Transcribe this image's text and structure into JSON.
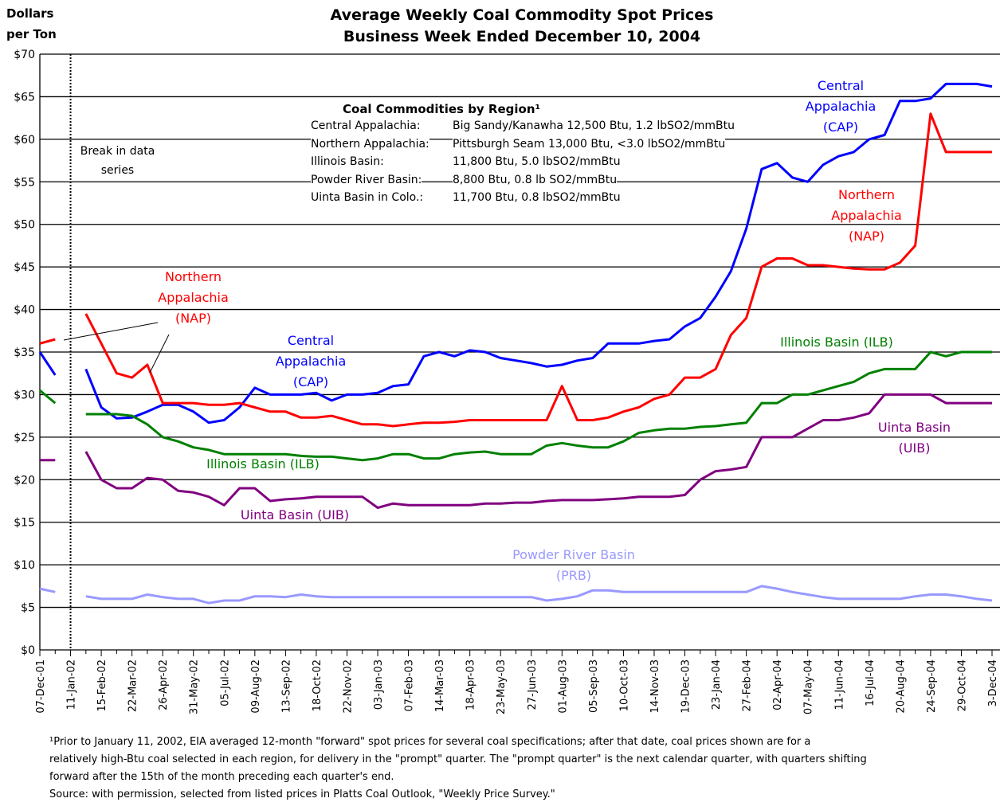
{
  "chart_data": {
    "type": "line",
    "title": [
      "Average Weekly Coal Commodity Spot Prices",
      "Business Week Ended December 10, 2004"
    ],
    "y_label": [
      "Dollars",
      "per Ton"
    ],
    "ylim": [
      0,
      70
    ],
    "yticks": [
      {
        "value": 0,
        "label": "$0"
      },
      {
        "value": 5,
        "label": "$5"
      },
      {
        "value": 10,
        "label": "$10"
      },
      {
        "value": 15,
        "label": "$15"
      },
      {
        "value": 20,
        "label": "$20"
      },
      {
        "value": 25,
        "label": "$25"
      },
      {
        "value": 30,
        "label": "$30"
      },
      {
        "value": 35,
        "label": "$35"
      },
      {
        "value": 40,
        "label": "$40"
      },
      {
        "value": 45,
        "label": "$45"
      },
      {
        "value": 50,
        "label": "$50"
      },
      {
        "value": 55,
        "label": "$55"
      },
      {
        "value": 60,
        "label": "$60"
      },
      {
        "value": 65,
        "label": "$65"
      },
      {
        "value": 70,
        "label": "$70"
      }
    ],
    "grid": true,
    "categories": [
      "07-Dec-01",
      null,
      "11-Jan-02",
      null,
      "15-Feb-02",
      null,
      "22-Mar-02",
      null,
      "26-Apr-02",
      null,
      "31-May-02",
      null,
      "05-Jul-02",
      null,
      "09-Aug-02",
      null,
      "13-Sep-02",
      null,
      "18-Oct-02",
      null,
      "22-Nov-02",
      null,
      "03-Jan-03",
      null,
      "07-Feb-03",
      null,
      "14-Mar-03",
      null,
      "18-Apr-03",
      null,
      "23-May-03",
      null,
      "27-Jun-03",
      null,
      "01-Aug-03",
      null,
      "05-Sep-03",
      null,
      "10-Oct-03",
      null,
      "14-Nov-03",
      null,
      "19-Dec-03",
      null,
      "23-Jan-04",
      null,
      "27-Feb-04",
      null,
      "02-Apr-04",
      null,
      "07-May-04",
      null,
      "11-Jun-04",
      null,
      "16-Jul-04",
      null,
      "20-Aug-04",
      null,
      "24-Sep-04",
      null,
      "29-Oct-04",
      null,
      "3-Dec-04"
    ],
    "series": [
      {
        "name": "Central Appalachia (CAP)",
        "color": "#0000ff",
        "values": [
          35,
          32.3,
          null,
          33,
          28.5,
          27.2,
          27.3,
          28,
          28.8,
          28.8,
          28,
          26.7,
          27,
          28.5,
          30.8,
          30,
          30,
          30,
          30.2,
          29.3,
          30,
          30,
          30.2,
          31,
          31.2,
          34.5,
          35,
          34.5,
          35.2,
          35,
          34.3,
          34,
          33.7,
          33.3,
          33.5,
          34,
          34.3,
          36,
          36,
          36,
          36.3,
          36.5,
          38,
          39,
          41.5,
          44.5,
          49.5,
          56.5,
          57.2,
          55.5,
          55,
          57,
          58,
          58.5,
          60,
          60.5,
          64.5,
          64.5,
          64.8,
          66.5,
          66.5,
          66.5,
          66.2
        ]
      },
      {
        "name": "Northern Appalachia (NAP)",
        "color": "#ff0000",
        "values": [
          36,
          36.5,
          null,
          39.5,
          36,
          32.5,
          32,
          33.5,
          29,
          29,
          29,
          28.8,
          28.8,
          29,
          28.5,
          28,
          28,
          27.3,
          27.3,
          27.5,
          27,
          26.5,
          26.5,
          26.3,
          26.5,
          26.7,
          26.7,
          26.8,
          27,
          27,
          27,
          27,
          27,
          27,
          31,
          27,
          27,
          27.3,
          28,
          28.5,
          29.5,
          30,
          32,
          32,
          33,
          37,
          39,
          45,
          46,
          46,
          45.2,
          45.2,
          45,
          44.8,
          44.7,
          44.7,
          45.5,
          47.5,
          63,
          58.5,
          58.5,
          58.5,
          58.5
        ]
      },
      {
        "name": "Illinois Basin (ILB)",
        "color": "#008000",
        "values": [
          30.5,
          29,
          null,
          27.7,
          27.7,
          27.7,
          27.5,
          26.5,
          25,
          24.5,
          23.8,
          23.5,
          23,
          23,
          23,
          23,
          23,
          22.8,
          22.7,
          22.7,
          22.5,
          22.3,
          22.5,
          23,
          23,
          22.5,
          22.5,
          23,
          23.2,
          23.3,
          23,
          23,
          23,
          24,
          24.3,
          24,
          23.8,
          23.8,
          24.5,
          25.5,
          25.8,
          26,
          26,
          26.2,
          26.3,
          26.5,
          26.7,
          29,
          29,
          30,
          30,
          30.5,
          31,
          31.5,
          32.5,
          33,
          33,
          33,
          35,
          34.5,
          35,
          35,
          35
        ]
      },
      {
        "name": "Uinta Basin (UIB)",
        "color": "#800080",
        "values": [
          22.3,
          22.3,
          null,
          23.3,
          20,
          19,
          19,
          20.2,
          20,
          18.7,
          18.5,
          18,
          17,
          19,
          19,
          17.5,
          17.7,
          17.8,
          18,
          18,
          18,
          18,
          16.7,
          17.2,
          17,
          17,
          17,
          17,
          17,
          17.2,
          17.2,
          17.3,
          17.3,
          17.5,
          17.6,
          17.6,
          17.6,
          17.7,
          17.8,
          18,
          18,
          18,
          18.2,
          20,
          21,
          21.2,
          21.5,
          25,
          25,
          25,
          26,
          27,
          27,
          27.3,
          27.8,
          30,
          30,
          30,
          30,
          29,
          29,
          29,
          29
        ]
      },
      {
        "name": "Powder River Basin (PRB)",
        "color": "#9999ff",
        "values": [
          7.2,
          6.8,
          null,
          6.3,
          6,
          6,
          6,
          6.5,
          6.2,
          6,
          6,
          5.5,
          5.8,
          5.8,
          6.3,
          6.3,
          6.2,
          6.5,
          6.3,
          6.2,
          6.2,
          6.2,
          6.2,
          6.2,
          6.2,
          6.2,
          6.2,
          6.2,
          6.2,
          6.2,
          6.2,
          6.2,
          6.2,
          5.8,
          6,
          6.3,
          7,
          7,
          6.8,
          6.8,
          6.8,
          6.8,
          6.8,
          6.8,
          6.8,
          6.8,
          6.8,
          7.5,
          7.2,
          6.8,
          6.5,
          6.2,
          6,
          6,
          6,
          6,
          6,
          6.3,
          6.5,
          6.5,
          6.3,
          6,
          5.8
        ]
      }
    ],
    "annotations": [
      {
        "text": "Central Appalachia (CAP)",
        "series": 0
      },
      {
        "text": "Northern Appalachia (NAP)",
        "series": 1
      },
      {
        "text": "Illinois Basin (ILB)",
        "series": 2
      },
      {
        "text": "Uinta Basin (UIB)",
        "series": 3
      },
      {
        "text": "Break in data series"
      }
    ],
    "inset": {
      "title": "Coal Commodities by Region¹",
      "rows": [
        [
          "Central Appalachia:",
          "Big Sandy/Kanawha 12,500 Btu, 1.2 lbSO2/mmBtu"
        ],
        [
          "Northern Appalachia:",
          "Pittsburgh Seam 13,000 Btu, <3.0 lbSO2/mmBtu"
        ],
        [
          "Illinois Basin:",
          "11,800 Btu, 5.0 lbSO2/mmBtu"
        ],
        [
          "Powder River Basin:",
          "8,800 Btu, 0.8 lb SO2/mmBtu"
        ],
        [
          "Uinta Basin in Colo.:",
          "11,700 Btu, 0.8 lbSO2/mmBtu"
        ]
      ]
    },
    "footnote": [
      "¹Prior to January 11, 2002, EIA averaged 12-month  \"forward\" spot prices for several coal specifications; after that date, coal prices shown are for a",
      "relatively high-Btu coal selected in each region, for delivery in the \"prompt\" quarter.  The \"prompt quarter\" is the next calendar quarter, with quarters shifting",
      "forward after the 15th of the month preceding each quarter's end."
    ],
    "source": "Source: with permission, selected from listed prices in Platts Coal Outlook, \"Weekly Price Survey.\""
  }
}
